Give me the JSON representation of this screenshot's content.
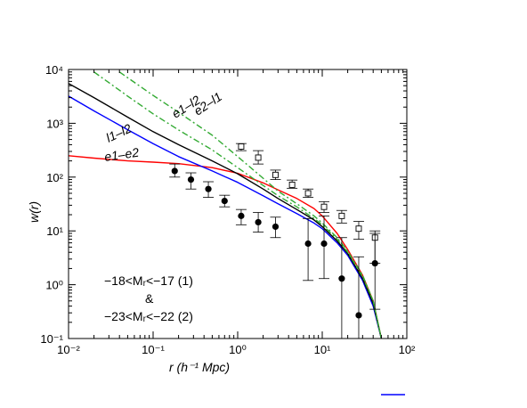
{
  "chart_data": {
    "type": "line",
    "xlabel": "r (h⁻¹ Mpc)",
    "ylabel": "w(r)",
    "xscale": "log",
    "yscale": "log",
    "xlim": [
      0.01,
      100
    ],
    "ylim": [
      0.1,
      10000
    ],
    "x_ticks": [
      "10⁻²",
      "10⁻¹",
      "10⁰",
      "10¹",
      "10²"
    ],
    "y_ticks": [
      "10⁻¹",
      "10⁰",
      "10¹",
      "10²",
      "10³",
      "10⁴"
    ],
    "annotation": {
      "line1": "−18<Mᵣ<−17 (1)",
      "line2": "&",
      "line3": "−23<Mᵣ<−22 (2)"
    },
    "series": [
      {
        "name": "e1–e2",
        "color": "#ff0000",
        "style": "solid",
        "x": [
          0.01,
          0.02,
          0.05,
          0.1,
          0.2,
          0.5,
          1,
          2,
          3,
          5,
          8,
          10,
          15,
          20,
          30,
          40,
          50
        ],
        "y": [
          250,
          225,
          200,
          190,
          178,
          150,
          118,
          78,
          58,
          40,
          26,
          19,
          9,
          4.5,
          1.5,
          0.5,
          0.1
        ]
      },
      {
        "name": "l1–l2",
        "color": "#0000ff",
        "style": "solid",
        "x": [
          0.01,
          0.02,
          0.05,
          0.1,
          0.2,
          0.5,
          1,
          2,
          3,
          5,
          8,
          10,
          15,
          20,
          30,
          40,
          50
        ],
        "y": [
          3200,
          1700,
          760,
          420,
          240,
          130,
          80,
          45,
          32,
          21,
          14,
          11,
          6,
          3.5,
          1.2,
          0.4,
          0.1
        ]
      },
      {
        "name": "black",
        "color": "#000000",
        "style": "solid",
        "x": [
          0.01,
          0.02,
          0.05,
          0.1,
          0.2,
          0.5,
          1,
          2,
          3,
          5,
          8,
          10,
          15,
          20,
          30,
          40,
          50
        ],
        "y": [
          5500,
          3000,
          1300,
          700,
          400,
          200,
          115,
          60,
          40,
          25,
          16,
          12,
          6.5,
          3.8,
          1.3,
          0.45,
          0.1
        ]
      },
      {
        "name": "e1–l2",
        "color": "#33aa33",
        "style": "dashdot",
        "x": [
          0.02,
          0.05,
          0.1,
          0.2,
          0.5,
          1,
          2,
          3,
          5,
          8,
          10,
          15,
          20,
          30,
          40,
          50
        ],
        "y": [
          9000,
          3200,
          1500,
          750,
          320,
          150,
          70,
          45,
          28,
          17,
          13,
          7,
          4,
          1.4,
          0.5,
          0.1
        ]
      },
      {
        "name": "e2–l1",
        "color": "#33aa33",
        "style": "dashdot",
        "x": [
          0.04,
          0.1,
          0.2,
          0.5,
          1,
          2,
          3,
          5,
          8,
          10,
          15,
          20,
          30,
          40,
          50
        ],
        "y": [
          9000,
          3300,
          1600,
          600,
          240,
          95,
          55,
          32,
          19,
          14,
          7.5,
          4.2,
          1.5,
          0.5,
          0.1
        ]
      }
    ],
    "points_filled": {
      "name": "filled circles",
      "x": [
        0.18,
        0.28,
        0.45,
        0.7,
        1.1,
        1.75,
        2.8,
        6.8,
        10.5,
        17,
        27,
        42
      ],
      "y": [
        130,
        90,
        60,
        36,
        19,
        14.5,
        12,
        5.8,
        5.8,
        1.3,
        0.27,
        2.5
      ],
      "yerr_low": [
        100,
        60,
        42,
        28,
        13,
        9.5,
        7.5,
        1.2,
        1.3,
        0.1,
        0.1,
        0.35
      ],
      "yerr_high": [
        175,
        120,
        82,
        46,
        25,
        22,
        18,
        17,
        19,
        7.5,
        3.3,
        9.0
      ]
    },
    "points_open": {
      "name": "open squares",
      "x": [
        1.1,
        1.75,
        2.8,
        4.4,
        6.8,
        10.5,
        17,
        27,
        42
      ],
      "y": [
        370,
        230,
        110,
        72,
        50,
        28,
        19,
        11,
        7.5
      ],
      "yerr_low": [
        310,
        175,
        90,
        62,
        42,
        22,
        14,
        7.0,
        2.5
      ],
      "yerr_high": [
        420,
        310,
        135,
        88,
        60,
        35,
        24,
        15,
        10
      ]
    }
  }
}
